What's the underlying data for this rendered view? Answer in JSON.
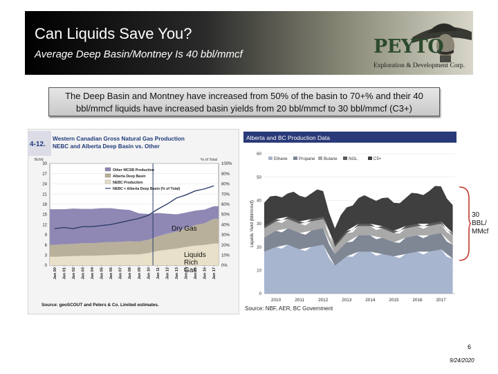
{
  "slide": {
    "title": "Can Liquids Save You?",
    "subtitle": "Average Deep Basin/Montney Is 40 bbl/mmcf",
    "logo_name": "PEYTO",
    "logo_sub": "Exploration & Development Corp.",
    "callout": "The Deep Basin and Montney have increased from 50% of the basin to 70+% and their 40 bbl/mmcf liquids have increased basin yields from 20 bbl/mmcf to 30 bbl/mmcf (C3+)",
    "annotation_dry": "Dry Gas",
    "annotation_liquids": [
      "Liquids",
      "Rich",
      "Gas"
    ],
    "annotation_bbl": [
      "30",
      "BBL/",
      "MMcf"
    ],
    "page_number": "6",
    "date": "9/24/2020",
    "colors": {
      "header_start": "#000000",
      "header_end": "#d7d6c8",
      "logo_green": "#2c4a2e",
      "chart_bar": "#2c3e6b"
    }
  },
  "chart_data": [
    {
      "type": "area",
      "fig_label": "4-12.",
      "title": "Western Canadian Gross Natural Gas Production",
      "subtitle": "NEBC and Alberta Deep Basin vs. Other",
      "ylabel_left": "Bcf/d",
      "ylabel_right": "% of Total",
      "ylim_left": [
        0,
        30
      ],
      "ylim_right": [
        0,
        100
      ],
      "y_ticks_left": [
        "0",
        "3",
        "6",
        "9",
        "12",
        "15",
        "18",
        "21",
        "24",
        "27",
        "30"
      ],
      "y_ticks_right": [
        "0%",
        "10%",
        "20%",
        "30%",
        "40%",
        "50%",
        "60%",
        "70%",
        "80%",
        "90%",
        "100%"
      ],
      "x_ticks": [
        "Jan 00",
        "Jan 01",
        "Jan 02",
        "Jan 03",
        "Jan 04",
        "Jan 05",
        "Jan 06",
        "Jan 07",
        "Jan 08",
        "Jan 09",
        "Jan 10",
        "Jan 11",
        "Jan 12",
        "Jan 13",
        "Jan 14",
        "Jan 15",
        "Jan 16",
        "Jan 17"
      ],
      "legend": [
        "Other WCSB Production",
        "Alberta Deep Basin",
        "NEBC Production",
        "NEBC + Alberta Deep Basin (% of Total)"
      ],
      "source": "Source: geoSCOUT and Peters & Co. Limited estimates.",
      "series": [
        {
          "name": "NEBC Production",
          "values": [
            2.5,
            2.6,
            2.7,
            2.8,
            2.8,
            2.9,
            3.0,
            3.1,
            3.2,
            3.2,
            3.6,
            4.2,
            4.6,
            4.9,
            5.4,
            5.8,
            6.0,
            6.4
          ]
        },
        {
          "name": "Alberta Deep Basin",
          "values": [
            3.5,
            3.6,
            3.6,
            3.7,
            3.7,
            3.8,
            3.8,
            3.8,
            3.9,
            3.8,
            3.9,
            4.3,
            4.7,
            5.0,
            5.5,
            6.0,
            6.4,
            7.3
          ]
        },
        {
          "name": "Other WCSB Production",
          "values": [
            10.5,
            10.3,
            10.4,
            10.1,
            10.1,
            10.1,
            10.0,
            9.6,
            9.2,
            8.3,
            7.6,
            6.9,
            5.9,
            5.1,
            4.6,
            4.3,
            4.0,
            3.7
          ]
        },
        {
          "name": "NEBC + Alberta Deep Basin (% of Total)",
          "values": [
            36,
            37,
            36,
            38,
            38,
            39,
            40,
            42,
            44,
            46,
            49,
            55,
            60,
            66,
            69,
            73,
            75,
            78
          ]
        }
      ]
    },
    {
      "type": "area",
      "title": "Alberta and BC Production Data",
      "ylabel": "Liquids Yield (bbl/mmcf)",
      "ylim": [
        0,
        60
      ],
      "y_ticks": [
        "0",
        "10",
        "20",
        "30",
        "40",
        "50",
        "60"
      ],
      "x_ticks": [
        "2010",
        "2011",
        "2012",
        "2013",
        "2014",
        "2015",
        "2016",
        "2017"
      ],
      "legend": [
        "Ethane",
        "Propane",
        "Butane",
        "NGL",
        "C5+"
      ],
      "source": "Source: NBF, AER, BC Government",
      "x": [
        2009.5,
        2010.0,
        2010.5,
        2011.0,
        2011.5,
        2012.0,
        2012.5,
        2013.0,
        2013.5,
        2014.0,
        2014.5,
        2015.0,
        2015.5,
        2016.0,
        2016.5,
        2017.0,
        2017.5
      ],
      "series": [
        {
          "name": "Ethane",
          "values": [
            18,
            20,
            21,
            19,
            20,
            21,
            12,
            16,
            18,
            18,
            17,
            16,
            17,
            18,
            18,
            19,
            15
          ]
        },
        {
          "name": "Propane",
          "values": [
            6,
            7,
            7,
            7,
            7,
            7,
            5,
            6,
            7,
            7,
            7,
            6,
            7,
            7,
            7,
            7,
            6
          ]
        },
        {
          "name": "Butane",
          "values": [
            4,
            4,
            4,
            4,
            4,
            4,
            3,
            4,
            4,
            4,
            4,
            4,
            4,
            4,
            4,
            4,
            4
          ]
        },
        {
          "name": "NGL",
          "values": [
            1,
            1,
            1,
            1,
            1,
            1,
            1,
            1,
            1,
            1,
            1,
            1,
            1,
            1,
            1,
            1,
            1
          ]
        },
        {
          "name": "C5+",
          "values": [
            10,
            10,
            10,
            11,
            11,
            11,
            7,
            10,
            11,
            11,
            12,
            12,
            12,
            13,
            14,
            15,
            12
          ]
        }
      ]
    }
  ]
}
